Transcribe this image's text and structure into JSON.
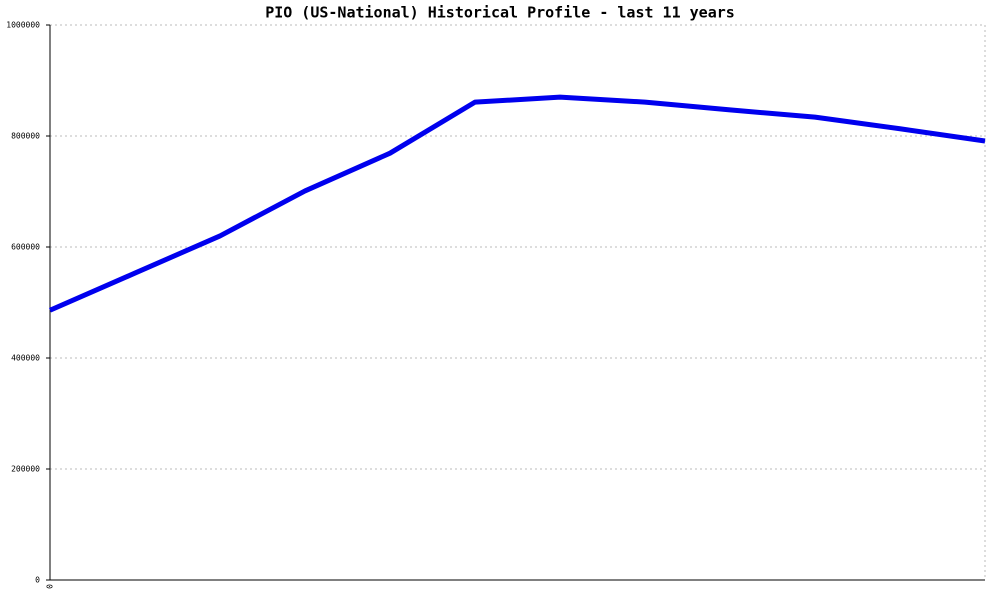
{
  "chart_data": {
    "type": "line",
    "title": "PIO (US-National) Historical Profile - last 11 years",
    "categories": [
      "0",
      null,
      null,
      null,
      null,
      null,
      null,
      null,
      null,
      null,
      null,
      null
    ],
    "series": [
      {
        "name": "PIO",
        "color": "#0000ee",
        "values": [
          486000,
          553000,
          620000,
          701000,
          769000,
          861000,
          870000,
          861000,
          847000,
          834000,
          813000,
          791000
        ]
      }
    ],
    "ylim": [
      0,
      1000000
    ],
    "yticks": [
      0,
      200000,
      400000,
      600000,
      800000,
      1000000
    ],
    "grid": true
  }
}
